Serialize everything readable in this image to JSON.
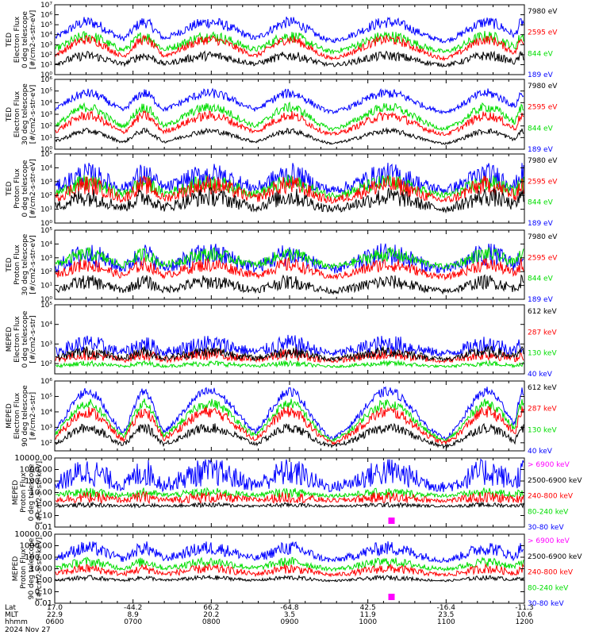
{
  "colors": {
    "blue": "#0000ff",
    "red": "#ff0000",
    "green": "#00dd00",
    "black": "#000000",
    "magenta": "#ff00ff"
  },
  "x_axis": {
    "rows": [
      {
        "label": "Lat",
        "values": [
          "17.0",
          "-44.2",
          "66.2",
          "-64.8",
          "42.5",
          "-16.4",
          "-11.3"
        ]
      },
      {
        "label": "MLT",
        "values": [
          "22.9",
          "8.9",
          "20.2",
          "3.5",
          "11.9",
          "23.5",
          "10.6"
        ]
      },
      {
        "label": "hhmm",
        "values": [
          "0600",
          "0700",
          "0800",
          "0900",
          "1000",
          "1100",
          "1200"
        ]
      }
    ],
    "date": "2024 Nov 27",
    "range": [
      6.0,
      12.0
    ]
  },
  "chart_data": [
    {
      "type": "line",
      "panel": 1,
      "ylabel": [
        "TED",
        "Electron Flux",
        "0 deg telescope",
        "[#/cm2-s-str-eV]"
      ],
      "scale": "log",
      "ylim": [
        1,
        10000000
      ],
      "yticks": [
        "10⁰",
        "10¹",
        "10²",
        "10³",
        "10⁴",
        "10⁵",
        "10⁶",
        "10⁷"
      ],
      "legend": [
        {
          "name": "7980 eV",
          "color": "black"
        },
        {
          "name": "2595 eV",
          "color": "red"
        },
        {
          "name": "844 eV",
          "color": "green"
        },
        {
          "name": "189 eV",
          "color": "blue"
        }
      ]
    },
    {
      "type": "line",
      "panel": 2,
      "ylabel": [
        "TED",
        "Electron Flux",
        "30 deg telescope",
        "[#/cm2-s-str-eV]"
      ],
      "scale": "log",
      "ylim": [
        1,
        1000000
      ],
      "yticks": [
        "10⁰",
        "10¹",
        "10²",
        "10³",
        "10⁴",
        "10⁵",
        "10⁶"
      ],
      "legend": [
        {
          "name": "7980 eV",
          "color": "black"
        },
        {
          "name": "2595 eV",
          "color": "red"
        },
        {
          "name": "844 eV",
          "color": "green"
        },
        {
          "name": "189 eV",
          "color": "blue"
        }
      ]
    },
    {
      "type": "line",
      "panel": 3,
      "ylabel": [
        "TED",
        "Proton Flux",
        "0 deg telescope",
        "[#/cm2-s-str-eV]"
      ],
      "scale": "log",
      "ylim": [
        1,
        100000
      ],
      "yticks": [
        "10⁰",
        "10¹",
        "10²",
        "10³",
        "10⁴",
        "10⁵"
      ],
      "legend": [
        {
          "name": "7980 eV",
          "color": "black"
        },
        {
          "name": "2595 eV",
          "color": "red"
        },
        {
          "name": "844 eV",
          "color": "green"
        },
        {
          "name": "189 eV",
          "color": "blue"
        }
      ]
    },
    {
      "type": "line",
      "panel": 4,
      "ylabel": [
        "TED",
        "Proton Flux",
        "30 deg telescope",
        "[#/cm2-s-str-eV]"
      ],
      "scale": "log",
      "ylim": [
        1,
        100000
      ],
      "yticks": [
        "10⁰",
        "10¹",
        "10²",
        "10³",
        "10⁴",
        "10⁵"
      ],
      "legend": [
        {
          "name": "7980 eV",
          "color": "black"
        },
        {
          "name": "2595 eV",
          "color": "red"
        },
        {
          "name": "844 eV",
          "color": "green"
        },
        {
          "name": "189 eV",
          "color": "blue"
        }
      ]
    },
    {
      "type": "line",
      "panel": 5,
      "ylabel": [
        "MEPED",
        "Electron Flux",
        "0 deg telescope",
        "[#/cm2-s-str]"
      ],
      "scale": "log",
      "ylim": [
        30,
        100000
      ],
      "yticks": [
        "10²",
        "10³",
        "10⁴",
        "10⁵"
      ],
      "legend": [
        {
          "name": "612 keV",
          "color": "black"
        },
        {
          "name": "287 keV",
          "color": "red"
        },
        {
          "name": "130 keV",
          "color": "green"
        },
        {
          "name": "40 keV",
          "color": "blue"
        }
      ]
    },
    {
      "type": "line",
      "panel": 6,
      "ylabel": [
        "MEPED",
        "Electron Flux",
        "90 deg telescope",
        "[#/cm2-s-str]"
      ],
      "scale": "log",
      "ylim": [
        30,
        1000000
      ],
      "yticks": [
        "10²",
        "10³",
        "10⁴",
        "10⁵",
        "10⁶"
      ],
      "legend": [
        {
          "name": "612 keV",
          "color": "black"
        },
        {
          "name": "287 keV",
          "color": "red"
        },
        {
          "name": "130 keV",
          "color": "green"
        },
        {
          "name": "40 keV",
          "color": "blue"
        }
      ]
    },
    {
      "type": "line",
      "panel": 7,
      "ylabel": [
        "MEPED",
        "Proton Flux",
        "0 deg telescope",
        "[#/cm2-s-str-keV]"
      ],
      "scale": "log",
      "ylim": [
        0.01,
        10000
      ],
      "yticks": [
        "0.01",
        "0.10",
        "1.00",
        "10.00",
        "100.00",
        "1000.00",
        "10000.00"
      ],
      "legend": [
        {
          "name": "> 6900 keV",
          "color": "magenta"
        },
        {
          "name": "2500-6900 keV",
          "color": "black"
        },
        {
          "name": "240-800 keV",
          "color": "red"
        },
        {
          "name": "80-240 keV",
          "color": "green"
        },
        {
          "name": "30-80 keV",
          "color": "blue"
        }
      ]
    },
    {
      "type": "line",
      "panel": 8,
      "ylabel": [
        "MEPED",
        "Proton Flux",
        "90 deg telescope",
        "[#/cm2-s-str-keV]"
      ],
      "scale": "log",
      "ylim": [
        0.01,
        10000
      ],
      "yticks": [
        "0.01",
        "0.10",
        "1.00",
        "10.00",
        "100.00",
        "1000.00",
        "10000.00"
      ],
      "legend": [
        {
          "name": "> 6900 keV",
          "color": "magenta"
        },
        {
          "name": "2500-6900 keV",
          "color": "black"
        },
        {
          "name": "240-800 keV",
          "color": "red"
        },
        {
          "name": "80-240 keV",
          "color": "green"
        },
        {
          "name": "30-80 keV",
          "color": "blue"
        }
      ]
    }
  ]
}
